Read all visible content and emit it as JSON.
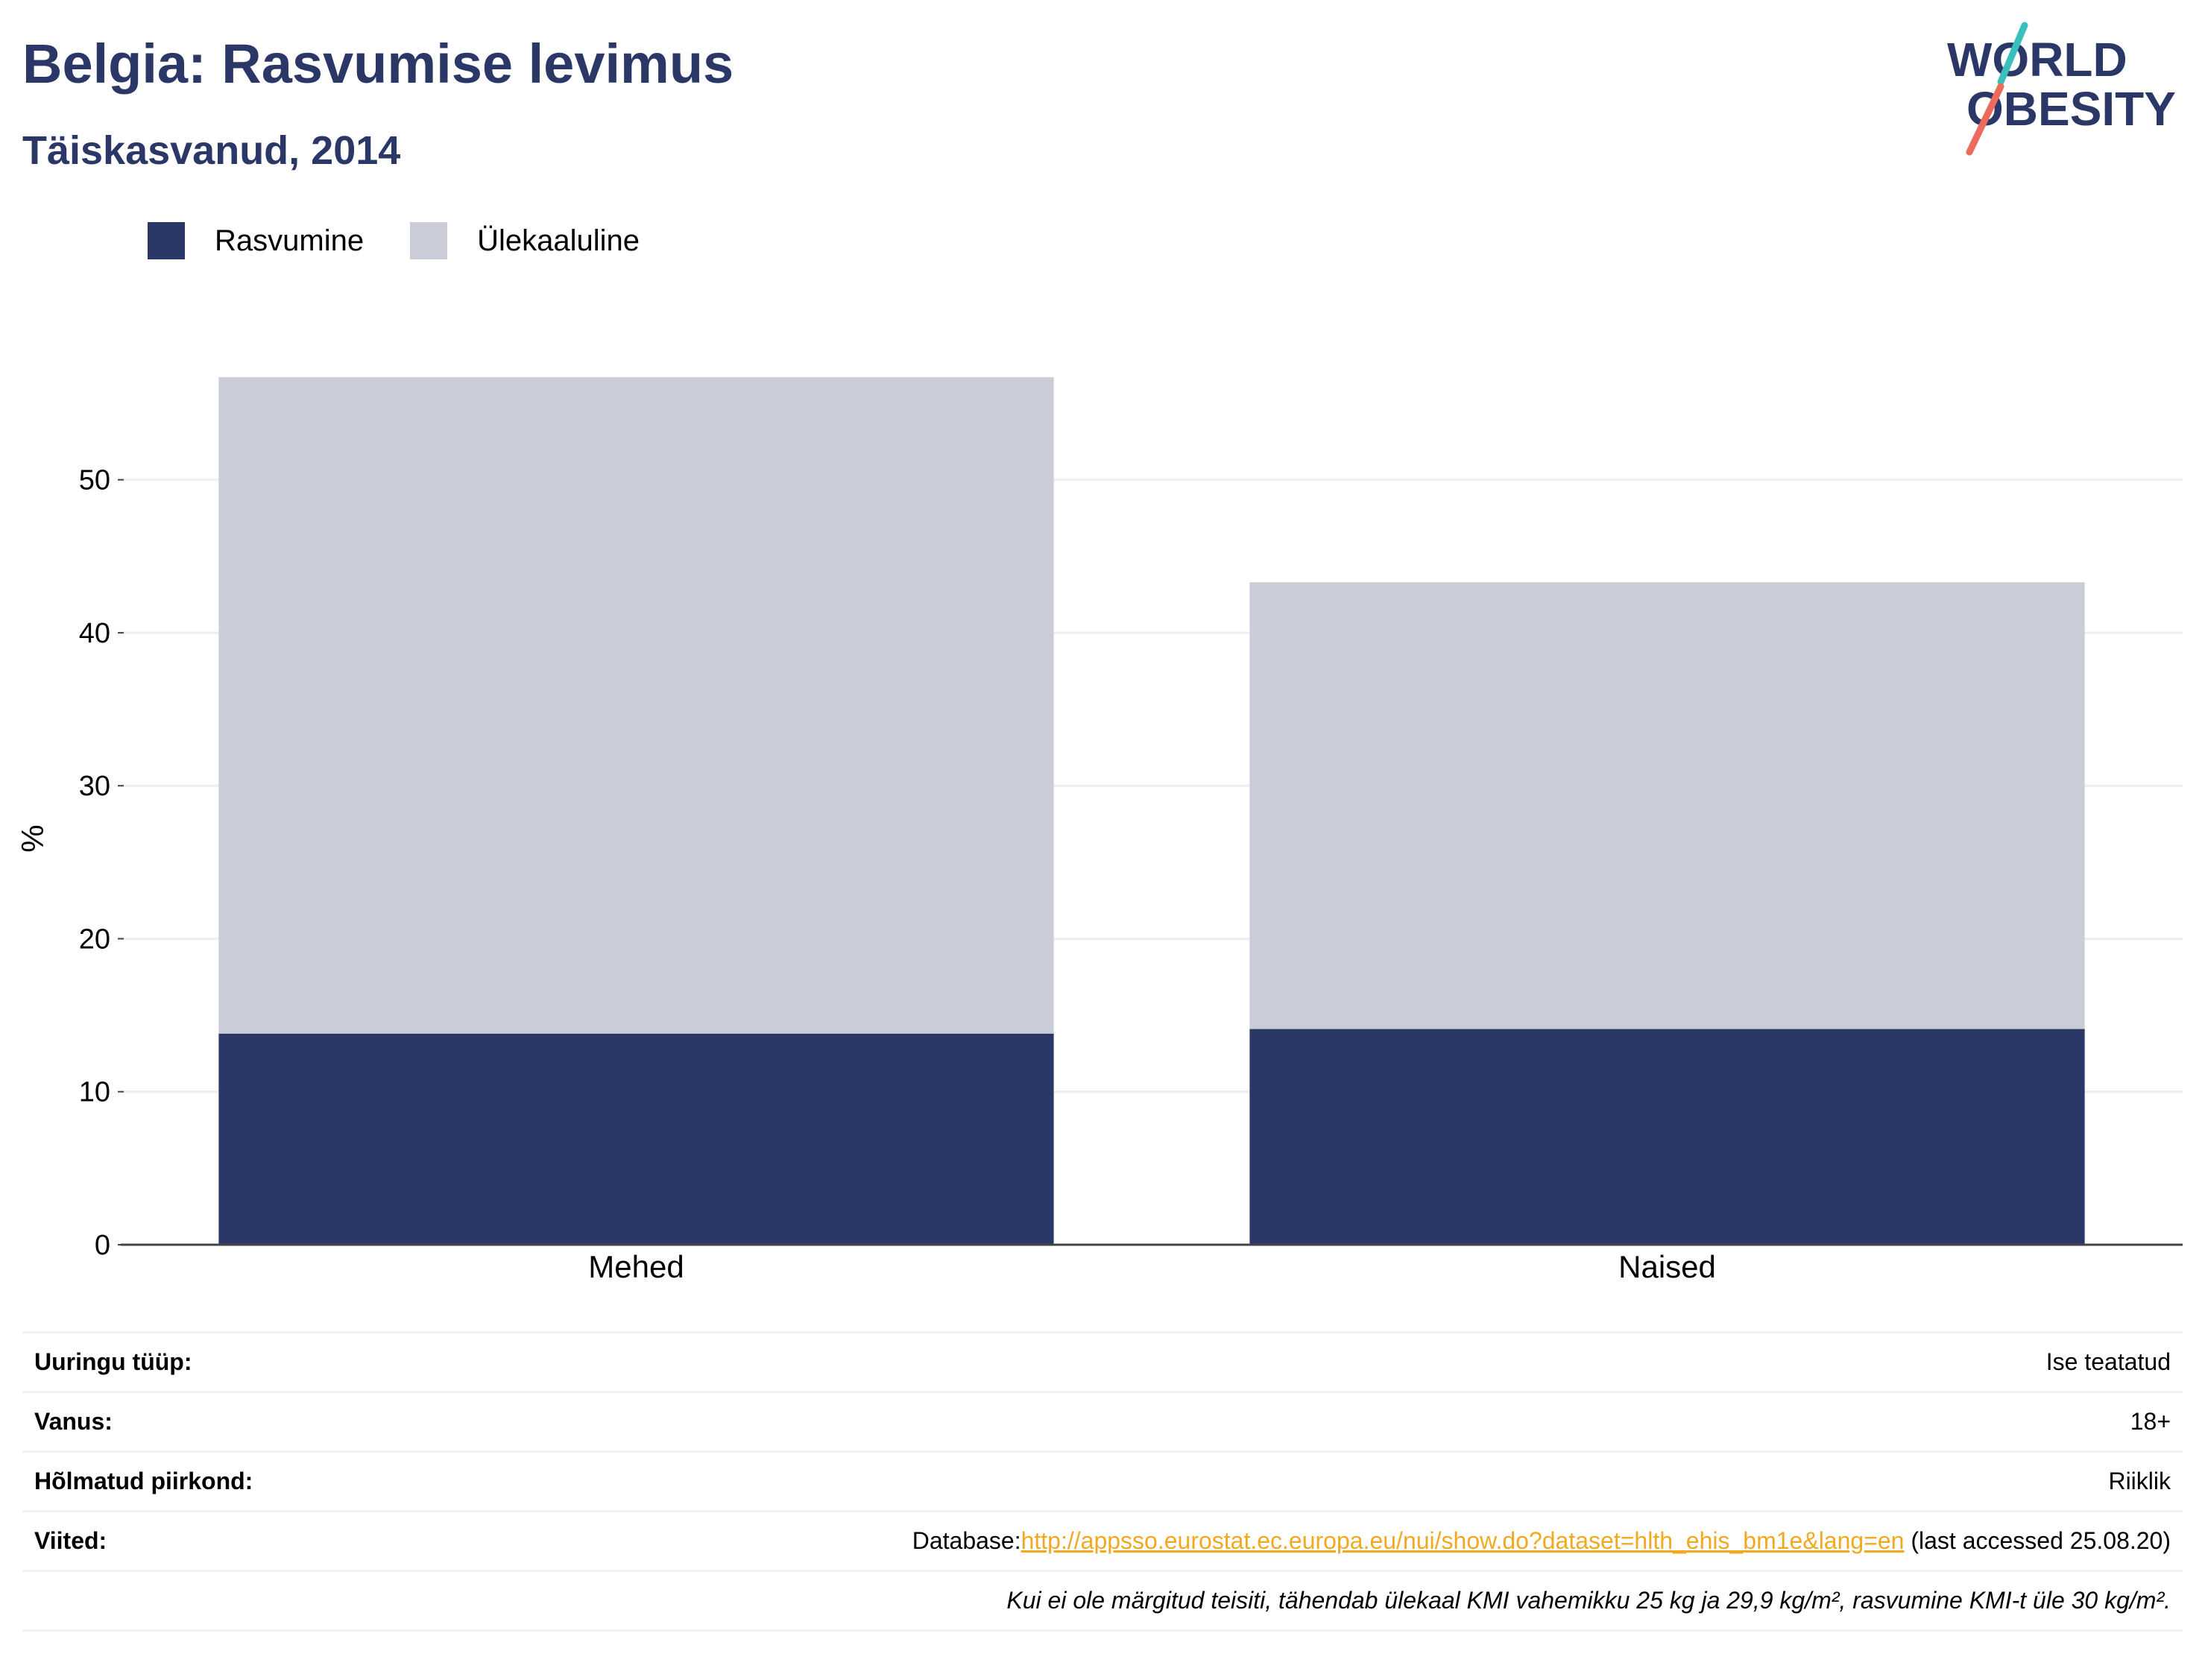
{
  "header": {
    "title": "Belgia: Rasvumise levimus",
    "subtitle": "Täiskasvanud, 2014"
  },
  "logo": {
    "line1": "WORLD",
    "line2": "OBESITY"
  },
  "colors": {
    "obesity": "#2b3766",
    "overweight": "#caccd8",
    "title": "#2b3766",
    "link": "#f2a922",
    "logo_teal": "#3bbfbd",
    "logo_coral": "#ec6b5c"
  },
  "legend": {
    "items": [
      {
        "label": "Rasvumine",
        "color": "#2b3766"
      },
      {
        "label": "Ülekaaluline",
        "color": "#caccd8"
      }
    ]
  },
  "chart_data": {
    "type": "bar",
    "stacked": true,
    "categories": [
      "Mehed",
      "Naised"
    ],
    "series": [
      {
        "name": "Rasvumine",
        "values": [
          13.8,
          14.1
        ]
      },
      {
        "name": "Ülekaaluline",
        "values": [
          42.9,
          29.2
        ]
      }
    ],
    "ylabel": "%",
    "ylim": [
      0,
      57
    ],
    "yticks": [
      0,
      10,
      20,
      30,
      40,
      50
    ],
    "grid": true,
    "legend_position": "top-left"
  },
  "info": {
    "survey_type_key": "Uuringu tüüp:",
    "survey_type_val": "Ise teatatud",
    "age_key": "Vanus:",
    "age_val": "18+",
    "area_key": "Hõlmatud piirkond:",
    "area_val": "Riiklik",
    "refs_key": "Viited:",
    "refs_prefix": "Database:",
    "refs_link": "http://appsso.eurostat.ec.europa.eu/nui/show.do?dataset=hlth_ehis_bm1e&lang=en",
    "refs_suffix": " (last accessed 25.08.20)",
    "note": "Kui ei ole märgitud teisiti, tähendab ülekaal KMI vahemikku 25 kg ja 29,9 kg/m², rasvumine KMI-t üle 30 kg/m²."
  }
}
